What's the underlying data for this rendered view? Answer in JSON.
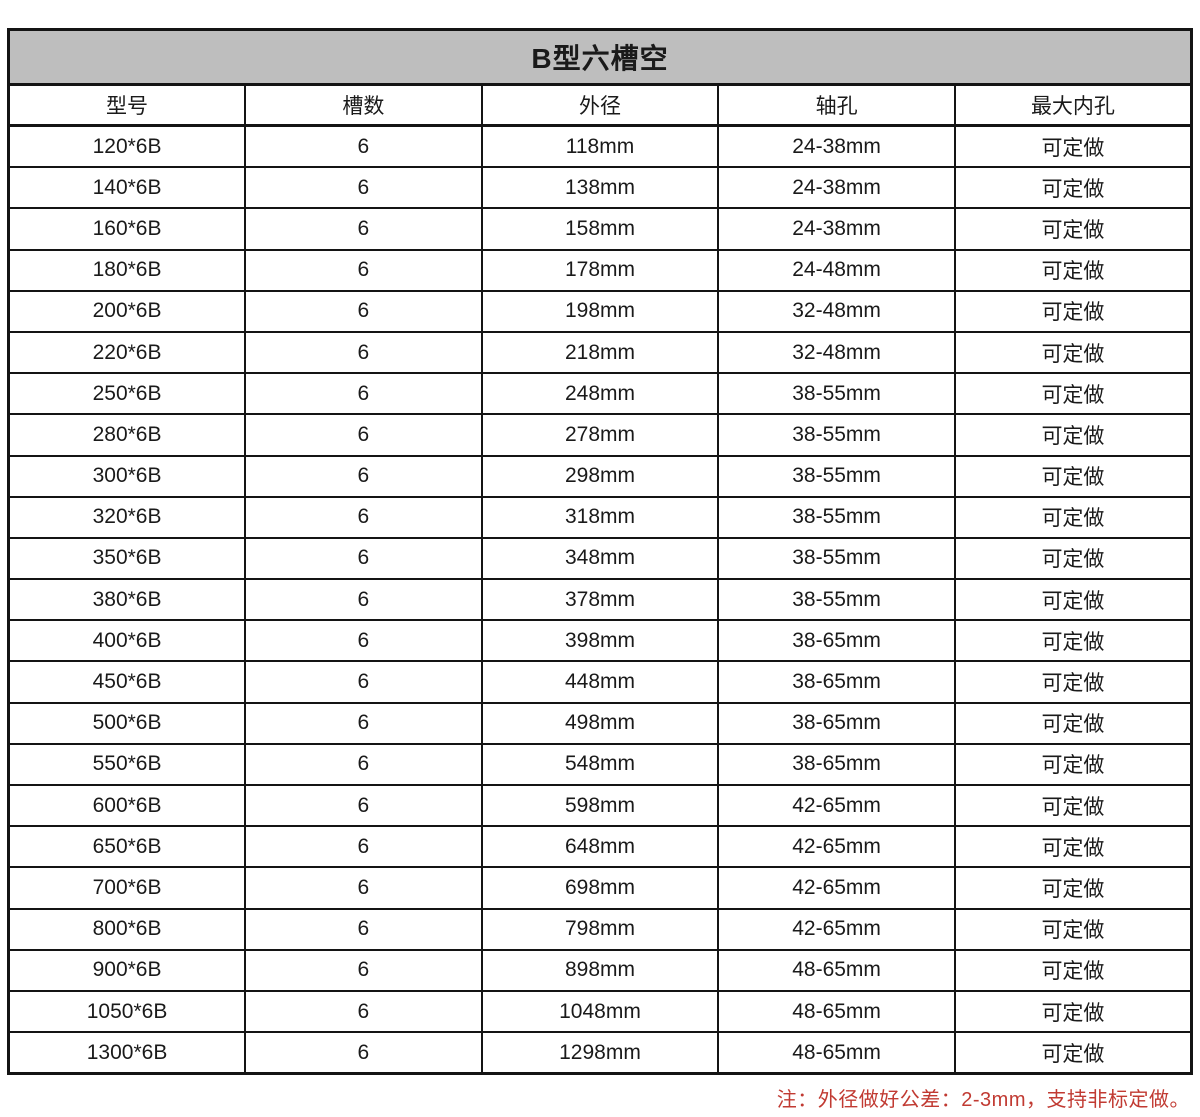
{
  "title": "B型六槽空",
  "columns": [
    "型号",
    "槽数",
    "外径",
    "轴孔",
    "最大内孔"
  ],
  "rows": [
    [
      "120*6B",
      "6",
      "118mm",
      "24-38mm",
      "可定做"
    ],
    [
      "140*6B",
      "6",
      "138mm",
      "24-38mm",
      "可定做"
    ],
    [
      "160*6B",
      "6",
      "158mm",
      "24-38mm",
      "可定做"
    ],
    [
      "180*6B",
      "6",
      "178mm",
      "24-48mm",
      "可定做"
    ],
    [
      "200*6B",
      "6",
      "198mm",
      "32-48mm",
      "可定做"
    ],
    [
      "220*6B",
      "6",
      "218mm",
      "32-48mm",
      "可定做"
    ],
    [
      "250*6B",
      "6",
      "248mm",
      "38-55mm",
      "可定做"
    ],
    [
      "280*6B",
      "6",
      "278mm",
      "38-55mm",
      "可定做"
    ],
    [
      "300*6B",
      "6",
      "298mm",
      "38-55mm",
      "可定做"
    ],
    [
      "320*6B",
      "6",
      "318mm",
      "38-55mm",
      "可定做"
    ],
    [
      "350*6B",
      "6",
      "348mm",
      "38-55mm",
      "可定做"
    ],
    [
      "380*6B",
      "6",
      "378mm",
      "38-55mm",
      "可定做"
    ],
    [
      "400*6B",
      "6",
      "398mm",
      "38-65mm",
      "可定做"
    ],
    [
      "450*6B",
      "6",
      "448mm",
      "38-65mm",
      "可定做"
    ],
    [
      "500*6B",
      "6",
      "498mm",
      "38-65mm",
      "可定做"
    ],
    [
      "550*6B",
      "6",
      "548mm",
      "38-65mm",
      "可定做"
    ],
    [
      "600*6B",
      "6",
      "598mm",
      "42-65mm",
      "可定做"
    ],
    [
      "650*6B",
      "6",
      "648mm",
      "42-65mm",
      "可定做"
    ],
    [
      "700*6B",
      "6",
      "698mm",
      "42-65mm",
      "可定做"
    ],
    [
      "800*6B",
      "6",
      "798mm",
      "42-65mm",
      "可定做"
    ],
    [
      "900*6B",
      "6",
      "898mm",
      "48-65mm",
      "可定做"
    ],
    [
      "1050*6B",
      "6",
      "1048mm",
      "48-65mm",
      "可定做"
    ],
    [
      "1300*6B",
      "6",
      "1298mm",
      "48-65mm",
      "可定做"
    ]
  ],
  "note": "注：外径做好公差：2-3mm，支持非标定做。",
  "colors": {
    "title_bg": "#bebebe",
    "border": "#141414",
    "note_red": "#c13a32"
  }
}
